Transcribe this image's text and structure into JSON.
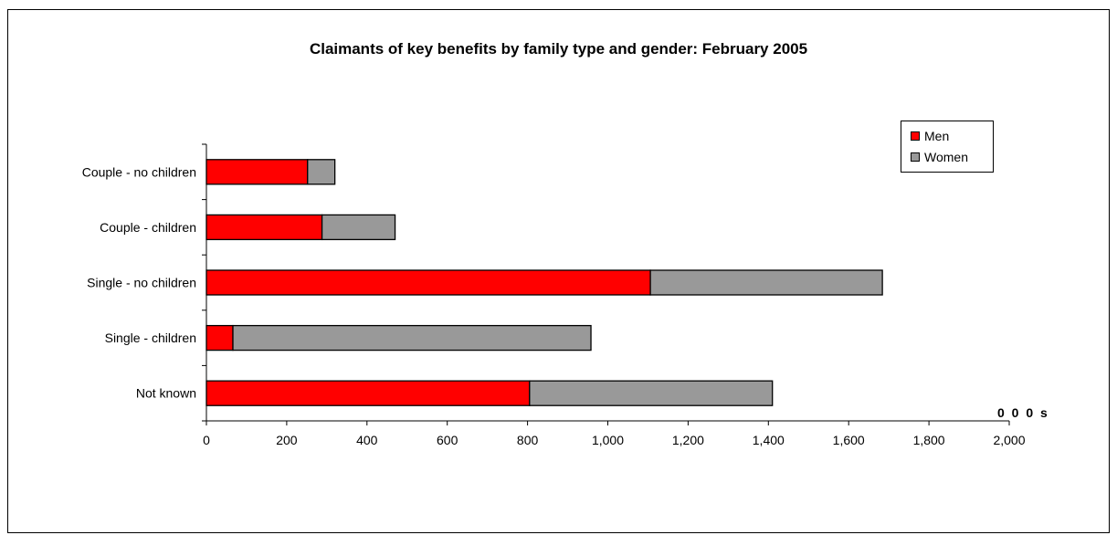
{
  "chart_data": {
    "type": "bar",
    "orientation": "horizontal",
    "stacked": true,
    "title": "Claimants of key benefits by family type and gender: February 2005",
    "units_label": "0 0 0 s",
    "categories": [
      "Couple - no children",
      "Couple - children",
      "Single - no children",
      "Single - children",
      "Not known"
    ],
    "series": [
      {
        "name": "Men",
        "values": [
          252,
          288,
          1106,
          66,
          805
        ],
        "color": "#ff0000"
      },
      {
        "name": "Women",
        "values": [
          68,
          182,
          578,
          892,
          605
        ],
        "color": "#999999"
      }
    ],
    "xlim": [
      0,
      2000
    ],
    "xticks": [
      0,
      200,
      400,
      600,
      800,
      1000,
      1200,
      1400,
      1600,
      1800,
      2000
    ],
    "xtick_labels": [
      "0",
      "200",
      "400",
      "600",
      "800",
      "1,000",
      "1,200",
      "1,400",
      "1,600",
      "1,800",
      "2,000"
    ],
    "grid": false,
    "legend_position": "top-right"
  }
}
